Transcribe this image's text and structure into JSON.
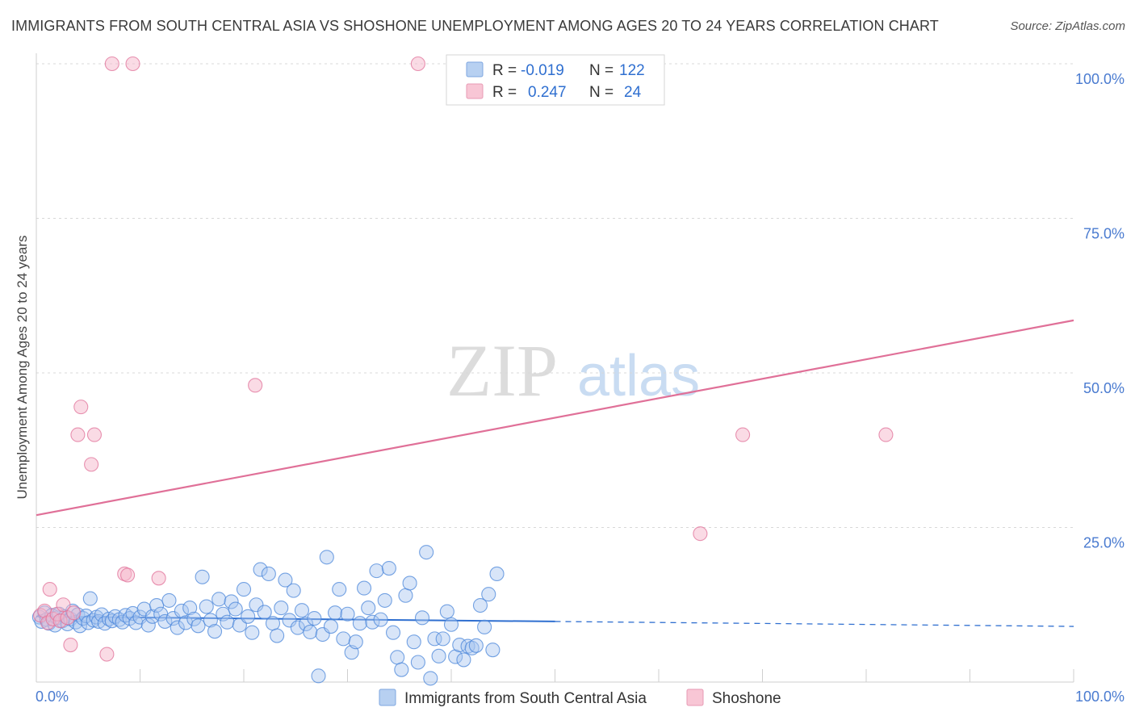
{
  "header": {
    "title": "IMMIGRANTS FROM SOUTH CENTRAL ASIA VS SHOSHONE UNEMPLOYMENT AMONG AGES 20 TO 24 YEARS CORRELATION CHART",
    "source": "Source: ZipAtlas.com"
  },
  "watermark": {
    "zip": "ZIP",
    "atlas": "atlas"
  },
  "colors": {
    "blue": "#4a86d9",
    "blue_fill": "#a9c6ef",
    "pink": "#e07098",
    "pink_fill": "#f5b8cb",
    "tick_text": "#4a7bd0",
    "grid": "#d8d8d8"
  },
  "legend_top": {
    "rows": [
      {
        "r_label": "R =",
        "r_value": "-0.019",
        "n_label": "N =",
        "n_value": "122"
      },
      {
        "r_label": "R =",
        "r_value": "0.247",
        "n_label": "N =",
        "n_value": "24"
      }
    ]
  },
  "chart_data": {
    "type": "scatter",
    "title": "IMMIGRANTS FROM SOUTH CENTRAL ASIA VS SHOSHONE UNEMPLOYMENT AMONG AGES 20 TO 24 YEARS CORRELATION CHART",
    "xlabel": "",
    "ylabel": "Unemployment Among Ages 20 to 24 years",
    "xlim": [
      0,
      100
    ],
    "ylim": [
      0,
      100
    ],
    "x_tick_labels": [
      "0.0%",
      "100.0%"
    ],
    "y_ticks": [
      {
        "value": 25,
        "label": "25.0%"
      },
      {
        "value": 50,
        "label": "50.0%"
      },
      {
        "value": 75,
        "label": "75.0%"
      },
      {
        "value": 100,
        "label": "100.0%"
      }
    ],
    "grid": true,
    "series": [
      {
        "name": "Immigrants from South Central Asia",
        "color": "#4a86d9",
        "r": "-0.019",
        "n": "122",
        "trend": {
          "x0": 0,
          "y0": 10.6,
          "x1": 50,
          "y1": 9.8,
          "dash_to_x": 100,
          "dash_to_y": 9.0
        },
        "points": [
          [
            0.3,
            10.5
          ],
          [
            0.5,
            9.8
          ],
          [
            0.8,
            11.2
          ],
          [
            1.0,
            10.1
          ],
          [
            1.2,
            9.5
          ],
          [
            1.5,
            10.8
          ],
          [
            1.8,
            9.2
          ],
          [
            2.0,
            10.4
          ],
          [
            2.2,
            11.0
          ],
          [
            2.5,
            9.9
          ],
          [
            2.8,
            10.6
          ],
          [
            3.0,
            9.4
          ],
          [
            3.3,
            10.2
          ],
          [
            3.5,
            11.5
          ],
          [
            3.8,
            9.7
          ],
          [
            4.0,
            10.9
          ],
          [
            4.2,
            9.1
          ],
          [
            4.5,
            10.3
          ],
          [
            4.8,
            10.7
          ],
          [
            5.0,
            9.6
          ],
          [
            5.2,
            13.5
          ],
          [
            5.5,
            10.0
          ],
          [
            5.8,
            10.5
          ],
          [
            6.0,
            9.8
          ],
          [
            6.3,
            10.9
          ],
          [
            6.6,
            9.5
          ],
          [
            7.0,
            10.2
          ],
          [
            7.3,
            9.9
          ],
          [
            7.6,
            10.6
          ],
          [
            8.0,
            10.1
          ],
          [
            8.3,
            9.7
          ],
          [
            8.6,
            10.8
          ],
          [
            9.0,
            10.3
          ],
          [
            9.3,
            11.1
          ],
          [
            9.6,
            9.6
          ],
          [
            10.0,
            10.5
          ],
          [
            10.4,
            11.8
          ],
          [
            10.8,
            9.2
          ],
          [
            11.2,
            10.6
          ],
          [
            11.6,
            12.4
          ],
          [
            12.0,
            11.0
          ],
          [
            12.4,
            9.8
          ],
          [
            12.8,
            13.2
          ],
          [
            13.2,
            10.3
          ],
          [
            13.6,
            8.8
          ],
          [
            14.0,
            11.5
          ],
          [
            14.4,
            9.6
          ],
          [
            14.8,
            12.0
          ],
          [
            15.2,
            10.2
          ],
          [
            15.6,
            9.1
          ],
          [
            16.0,
            17.0
          ],
          [
            16.4,
            12.2
          ],
          [
            16.8,
            10.0
          ],
          [
            17.2,
            8.2
          ],
          [
            17.6,
            13.4
          ],
          [
            18.0,
            11.0
          ],
          [
            18.4,
            9.7
          ],
          [
            18.8,
            13.0
          ],
          [
            19.2,
            11.8
          ],
          [
            19.6,
            9.2
          ],
          [
            20.0,
            15.0
          ],
          [
            20.4,
            10.6
          ],
          [
            20.8,
            8.0
          ],
          [
            21.2,
            12.5
          ],
          [
            21.6,
            18.2
          ],
          [
            22.0,
            11.3
          ],
          [
            22.4,
            17.5
          ],
          [
            22.8,
            9.5
          ],
          [
            23.2,
            7.5
          ],
          [
            23.6,
            12.0
          ],
          [
            24.0,
            16.5
          ],
          [
            24.4,
            10.0
          ],
          [
            24.8,
            14.8
          ],
          [
            25.2,
            8.8
          ],
          [
            25.6,
            11.6
          ],
          [
            26.0,
            9.4
          ],
          [
            26.4,
            8.1
          ],
          [
            26.8,
            10.3
          ],
          [
            27.2,
            1.0
          ],
          [
            27.6,
            7.7
          ],
          [
            28.0,
            20.2
          ],
          [
            28.4,
            9.0
          ],
          [
            28.8,
            11.2
          ],
          [
            29.2,
            15.0
          ],
          [
            29.6,
            7.0
          ],
          [
            30.0,
            11.0
          ],
          [
            30.4,
            4.8
          ],
          [
            30.8,
            6.5
          ],
          [
            31.2,
            9.5
          ],
          [
            31.6,
            15.2
          ],
          [
            32.0,
            12.0
          ],
          [
            32.4,
            9.7
          ],
          [
            32.8,
            18.0
          ],
          [
            33.2,
            10.1
          ],
          [
            33.6,
            13.2
          ],
          [
            34.0,
            18.4
          ],
          [
            34.4,
            8.0
          ],
          [
            34.8,
            4.0
          ],
          [
            35.2,
            2.0
          ],
          [
            35.6,
            14.0
          ],
          [
            36.0,
            16.0
          ],
          [
            36.4,
            6.5
          ],
          [
            36.8,
            3.2
          ],
          [
            37.2,
            10.4
          ],
          [
            37.6,
            21.0
          ],
          [
            38.0,
            0.6
          ],
          [
            38.4,
            7.0
          ],
          [
            38.8,
            4.2
          ],
          [
            39.2,
            7.0
          ],
          [
            39.6,
            11.4
          ],
          [
            40.0,
            9.3
          ],
          [
            40.4,
            4.1
          ],
          [
            40.8,
            6.0
          ],
          [
            41.2,
            3.6
          ],
          [
            41.6,
            5.8
          ],
          [
            42.0,
            5.5
          ],
          [
            42.4,
            5.9
          ],
          [
            42.8,
            12.4
          ],
          [
            43.2,
            8.9
          ],
          [
            43.6,
            14.2
          ],
          [
            44.0,
            5.2
          ],
          [
            44.4,
            17.5
          ]
        ]
      },
      {
        "name": "Shoshone",
        "color": "#e07098",
        "r": "0.247",
        "n": "24",
        "trend": {
          "x0": 0,
          "y0": 27.0,
          "x1": 100,
          "y1": 58.5
        },
        "points": [
          [
            0.4,
            10.8
          ],
          [
            0.8,
            11.5
          ],
          [
            1.1,
            9.6
          ],
          [
            1.3,
            15.0
          ],
          [
            1.6,
            10.2
          ],
          [
            2.0,
            11.0
          ],
          [
            2.3,
            9.9
          ],
          [
            2.6,
            12.5
          ],
          [
            3.0,
            10.4
          ],
          [
            3.3,
            6.0
          ],
          [
            3.6,
            11.2
          ],
          [
            4.0,
            40.0
          ],
          [
            4.3,
            44.5
          ],
          [
            5.3,
            35.2
          ],
          [
            5.6,
            40.0
          ],
          [
            6.8,
            4.5
          ],
          [
            7.3,
            100
          ],
          [
            8.5,
            17.5
          ],
          [
            8.8,
            17.3
          ],
          [
            9.3,
            100
          ],
          [
            11.8,
            16.8
          ],
          [
            21.1,
            48.0
          ],
          [
            36.8,
            100
          ],
          [
            64.0,
            24.0
          ]
        ],
        "extra_points": [
          [
            68.1,
            40.0
          ],
          [
            81.9,
            40.0
          ]
        ]
      }
    ]
  },
  "legend_bottom": [
    {
      "label": "Immigrants from South Central Asia"
    },
    {
      "label": "Shoshone"
    }
  ]
}
